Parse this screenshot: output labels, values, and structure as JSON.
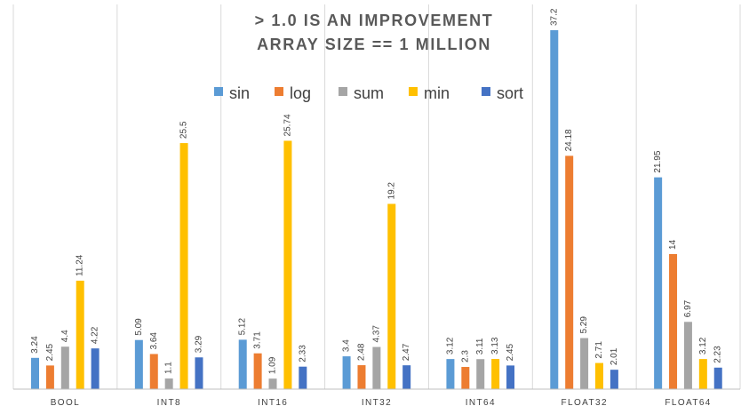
{
  "chart_data": {
    "type": "bar",
    "title_lines": [
      "> 1.0 IS AN IMPROVEMENT",
      "ARRAY SIZE == 1 MILLION"
    ],
    "categories": [
      "BOOL",
      "INT8",
      "INT16",
      "INT32",
      "INT64",
      "FLOAT32",
      "FLOAT64"
    ],
    "series": [
      {
        "name": "sin",
        "color": "#5B9BD5",
        "values": [
          3.24,
          5.09,
          5.12,
          3.4,
          3.12,
          37.2,
          21.95
        ]
      },
      {
        "name": "log",
        "color": "#ED7D31",
        "values": [
          2.45,
          3.64,
          3.71,
          2.48,
          2.3,
          24.18,
          14
        ]
      },
      {
        "name": "sum",
        "color": "#A5A5A5",
        "values": [
          4.4,
          1.1,
          1.09,
          4.37,
          3.11,
          5.29,
          6.97
        ]
      },
      {
        "name": "min",
        "color": "#FFC000",
        "values": [
          11.24,
          25.5,
          25.74,
          19.2,
          3.13,
          2.71,
          3.12
        ]
      },
      {
        "name": "sort",
        "color": "#4472C4",
        "values": [
          4.22,
          3.29,
          2.33,
          2.47,
          2.45,
          2.01,
          2.23
        ]
      }
    ],
    "ylim": [
      0,
      37.2
    ],
    "legend_position": "top",
    "grid": "vertical category separators",
    "xlabel": "",
    "ylabel": ""
  }
}
